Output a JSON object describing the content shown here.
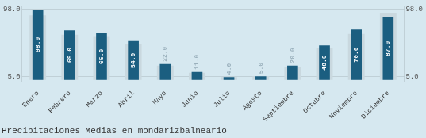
{
  "chart_data": {
    "type": "bar",
    "title": "Precipitaciones Medias en mondarizbalneario",
    "categories": [
      "Enero",
      "Febrero",
      "Marzo",
      "Abril",
      "Mayo",
      "Junio",
      "Julio",
      "Agosto",
      "Septiembre",
      "Octubre",
      "Noviembre",
      "Diciembre"
    ],
    "series": [
      {
        "color": "#c9d8df",
        "values": [
          90.0,
          63.0,
          60.0,
          50.0,
          20.0,
          10.0,
          4.0,
          5.0,
          18.0,
          44.0,
          64.0,
          93.0
        ]
      },
      {
        "color": "#1b5e80",
        "values": [
          98.0,
          69.0,
          65.0,
          54.0,
          22.0,
          11.0,
          4.0,
          5.0,
          20.0,
          48.0,
          70.0,
          87.0
        ],
        "data_labels": true,
        "value_labels": [
          "98.0",
          "69.0",
          "65.0",
          "54.0",
          "22.0",
          "11.0",
          "4.0",
          "5.0",
          "20.0",
          "48.0",
          "70.0",
          "87.0"
        ]
      }
    ],
    "ylim": [
      -3.0,
      103.0
    ],
    "yticks": [
      {
        "value": 98.0,
        "label": "98.0"
      },
      {
        "value": 5.0,
        "label": "5.0"
      }
    ],
    "y2lim": [
      -3.0,
      103.0
    ],
    "y2ticks": [
      {
        "value": 98.0,
        "label": "98.0"
      },
      {
        "value": 5.0,
        "label": "5.0"
      }
    ],
    "grid": true
  }
}
